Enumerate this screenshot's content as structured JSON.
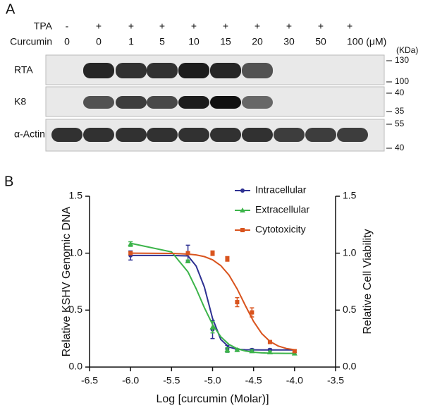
{
  "panel_a": {
    "label": "A",
    "unit": "(KDa)",
    "rows": [
      {
        "name": "TPA",
        "lanes": [
          "-",
          "+",
          "+",
          "+",
          "+",
          "+",
          "+",
          "+",
          "+",
          "+"
        ]
      },
      {
        "name": "Curcumin",
        "lanes": [
          "0",
          "0",
          "1",
          "5",
          "10",
          "15",
          "20",
          "30",
          "50",
          "100 (μM)"
        ]
      }
    ],
    "blots": [
      {
        "name": "RTA",
        "markers": [
          "130",
          "100"
        ]
      },
      {
        "name": "K8",
        "markers": [
          "40",
          "35"
        ]
      },
      {
        "name": "α-Actin",
        "markers": [
          "55",
          "40"
        ]
      }
    ]
  },
  "panel_b_label": "B",
  "chart_data": {
    "type": "dose-response",
    "xlabel": "Log [curcumin (Molar)]",
    "ylabel": "Relative KSHV Genomic DNA",
    "y2label": "Relative Cell Viability",
    "x": [
      -6,
      -5.3,
      -5,
      -4.82,
      -4.7,
      -4.52,
      -4.3,
      -4
    ],
    "fit_x": [
      -6,
      -5.5,
      -5.3,
      -5.2,
      -5.1,
      -5.0,
      -4.9,
      -4.8,
      -4.7,
      -4.6,
      -4.5,
      -4.4,
      -4.3,
      -4.2,
      -4.1,
      -4.0
    ],
    "series": [
      {
        "name": "Intracellular",
        "color": "#2e3192",
        "marker": "circle",
        "values": [
          0.98,
          1.0,
          0.33,
          0.16,
          0.15,
          0.15,
          0.15,
          0.13
        ],
        "errors": [
          0.04,
          0.07,
          0.08,
          0.03,
          0.01,
          0.01,
          0.01,
          0.02
        ],
        "fit": [
          0.98,
          0.98,
          0.976,
          0.887,
          0.703,
          0.427,
          0.243,
          0.175,
          0.157,
          0.152,
          0.151,
          0.15,
          0.15,
          0.15,
          0.15,
          0.15
        ]
      },
      {
        "name": "Extracellular",
        "color": "#3cb44a",
        "marker": "triangle",
        "values": [
          1.08,
          0.93,
          0.35,
          0.15,
          0.15,
          0.14,
          0.13,
          0.12
        ],
        "errors": [
          0.02,
          0.01,
          0.05,
          0.02,
          0.01,
          0.01,
          0.01,
          0.01
        ],
        "fit": [
          1.087,
          1.011,
          0.836,
          0.688,
          0.522,
          0.374,
          0.267,
          0.199,
          0.161,
          0.141,
          0.13,
          0.125,
          0.122,
          0.121,
          0.12,
          0.12
        ]
      },
      {
        "name": "Cytotoxicity",
        "color": "#d9541e",
        "marker": "square",
        "axis": "y2",
        "values": [
          1.0,
          1.0,
          1.0,
          0.95,
          0.57,
          0.48,
          0.22,
          0.14
        ],
        "errors": [
          0.01,
          0.01,
          0.02,
          0.02,
          0.04,
          0.04,
          0.01,
          0.01
        ],
        "fit": [
          1.0,
          0.998,
          0.992,
          0.985,
          0.97,
          0.942,
          0.891,
          0.808,
          0.686,
          0.54,
          0.401,
          0.294,
          0.225,
          0.185,
          0.163,
          0.152
        ]
      }
    ],
    "xlim": [
      -6.5,
      -3.5
    ],
    "xticks": [
      -6.5,
      {
        "value": -6,
        "label": "-6.0"
      },
      -5.5,
      {
        "value": -5,
        "label": "-5.0"
      },
      -4.5,
      {
        "value": -4,
        "label": "-4.0"
      },
      -3.5
    ],
    "ylim": [
      0,
      1.5
    ],
    "yticks": [
      {
        "value": 0,
        "label": "0.0"
      },
      0.5,
      {
        "value": 1,
        "label": "1.0"
      },
      1.5
    ],
    "y2lim": [
      0,
      1.5
    ],
    "y2ticks": [
      {
        "value": 0,
        "label": "0.0"
      },
      0.5,
      {
        "value": 1,
        "label": "1.0"
      },
      1.5
    ],
    "legend": "top-center"
  }
}
